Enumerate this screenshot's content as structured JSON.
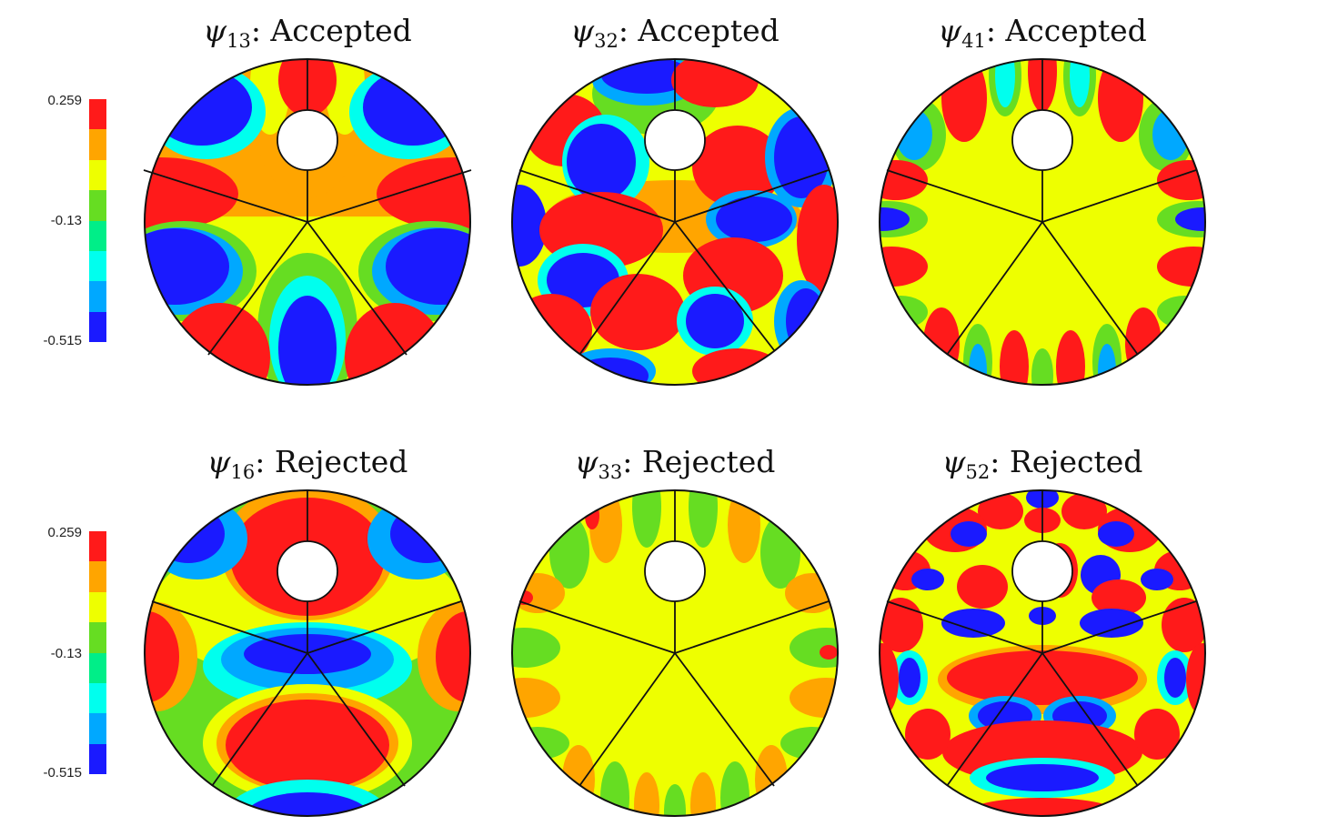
{
  "colorbar": {
    "max_label": "0.259",
    "mid_label": "-0.13",
    "min_label": "-0.515",
    "levels": [
      "#ff1a1a",
      "#ffa500",
      "#eeff00",
      "#66dd22",
      "#00ee88",
      "#00ffee",
      "#00a8ff",
      "#1a1aff"
    ]
  },
  "panels": [
    {
      "symbol": "ψ",
      "subscript": "13",
      "status": ": Accepted"
    },
    {
      "symbol": "ψ",
      "subscript": "32",
      "status": ": Accepted"
    },
    {
      "symbol": "ψ",
      "subscript": "41",
      "status": ": Accepted"
    },
    {
      "symbol": "ψ",
      "subscript": "16",
      "status": ": Rejected"
    },
    {
      "symbol": "ψ",
      "subscript": "33",
      "status": ": Rejected"
    },
    {
      "symbol": "ψ",
      "subscript": "52",
      "status": ": Rejected"
    }
  ],
  "colors": {
    "red": "#ff1a1a",
    "orange": "#ffa500",
    "yellow": "#eeff00",
    "green": "#66dd22",
    "cyan": "#00ffee",
    "blue": "#1a1aff"
  }
}
